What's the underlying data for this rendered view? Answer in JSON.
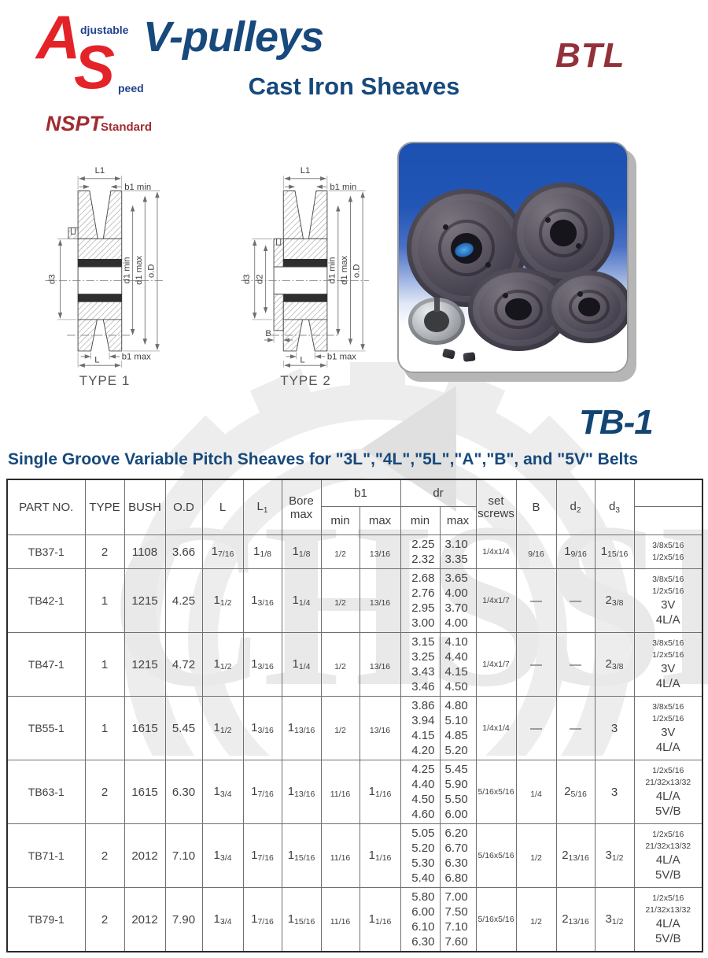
{
  "header": {
    "logo": {
      "a": "A",
      "adjustable": "djustable",
      "s": "S",
      "speed": "peed"
    },
    "title": "V-pulleys",
    "brand": "BTL",
    "subtitle": "Cast Iron Sheaves",
    "standard_name": "NSPT",
    "standard_suffix": "Standard"
  },
  "model_code": "TB-1",
  "watermark_text": "CHSSB",
  "section_title": "Single Groove Variable Pitch Sheaves for \"3L\",\"4L\",\"5L\",\"A\",\"B\", and \"5V\" Belts",
  "drawings": {
    "type1": {
      "caption": "TYPE 1",
      "labels": {
        "L1": "L1",
        "b1min": "b1 min",
        "d3": "d3",
        "d1min": "d1 min",
        "d1max": "d1 max",
        "oD": "o.D",
        "b1max": "b1 max",
        "L": "L"
      }
    },
    "type2": {
      "caption": "TYPE 2",
      "labels": {
        "L1": "L1",
        "b1min": "b1 min",
        "d3": "d3",
        "d2": "d2",
        "B": "B",
        "d1min": "d1 min",
        "d1max": "d1 max",
        "oD": "o.D",
        "b1max": "b1 max",
        "L": "L"
      }
    }
  },
  "table": {
    "headers": {
      "part": "PART NO.",
      "type": "TYPE",
      "bush": "BUSH",
      "od": "O.D",
      "l": "L",
      "l1_base": "L",
      "l1_sub": "1",
      "bore_line1": "Bore",
      "bore_line2": "max",
      "b1": "b1",
      "dr": "dr",
      "min": "min",
      "max": "max",
      "set_line1": "set",
      "set_line2": "screws",
      "b": "B",
      "d2_base": "d",
      "d2_sub": "2",
      "d3_base": "d",
      "d3_sub": "3"
    },
    "rows": [
      {
        "part": "TB37-1",
        "type": "2",
        "bush": "1108",
        "od": "3.66",
        "L": {
          "w": "1",
          "f": "7/16"
        },
        "L1": {
          "w": "1",
          "f": "1/8"
        },
        "bore": {
          "w": "1",
          "f": "1/8"
        },
        "b1min": {
          "f": "1/2"
        },
        "b1max": {
          "f": "13/16"
        },
        "drmin": [
          "2.25",
          "2.32"
        ],
        "drmax": [
          "3.10",
          "3.35"
        ],
        "set": "1/4x1/4",
        "B": {
          "f": "9/16"
        },
        "d2": {
          "w": "1",
          "f": "9/16"
        },
        "d3": {
          "w": "1",
          "f": "15/16"
        },
        "belts": [
          {
            "v": "3/8x5/16",
            "s": true
          },
          {
            "v": "1/2x5/16",
            "s": true
          }
        ]
      },
      {
        "part": "TB42-1",
        "type": "1",
        "bush": "1215",
        "od": "4.25",
        "L": {
          "w": "1",
          "f": "1/2"
        },
        "L1": {
          "w": "1",
          "f": "3/16"
        },
        "bore": {
          "w": "1",
          "f": "1/4"
        },
        "b1min": {
          "f": "1/2"
        },
        "b1max": {
          "f": "13/16"
        },
        "drmin": [
          "2.68",
          "2.76",
          "2.95",
          "3.00"
        ],
        "drmax": [
          "3.65",
          "4.00",
          "3.70",
          "4.00"
        ],
        "set": "1/4x1/7",
        "B": {
          "dash": true
        },
        "d2": {
          "dash": true
        },
        "d3": {
          "w": "2",
          "f": "3/8"
        },
        "belts": [
          {
            "v": "3/8x5/16",
            "s": true
          },
          {
            "v": "1/2x5/16",
            "s": true
          },
          {
            "v": "3V",
            "s": false
          },
          {
            "v": "4L/A",
            "s": false
          }
        ]
      },
      {
        "part": "TB47-1",
        "type": "1",
        "bush": "1215",
        "od": "4.72",
        "L": {
          "w": "1",
          "f": "1/2"
        },
        "L1": {
          "w": "1",
          "f": "3/16"
        },
        "bore": {
          "w": "1",
          "f": "1/4"
        },
        "b1min": {
          "f": "1/2"
        },
        "b1max": {
          "f": "13/16"
        },
        "drmin": [
          "3.15",
          "3.25",
          "3.43",
          "3.46"
        ],
        "drmax": [
          "4.10",
          "4.40",
          "4.15",
          "4.50"
        ],
        "set": "1/4x1/7",
        "B": {
          "dash": true
        },
        "d2": {
          "dash": true
        },
        "d3": {
          "w": "2",
          "f": "3/8"
        },
        "belts": [
          {
            "v": "3/8x5/16",
            "s": true
          },
          {
            "v": "1/2x5/16",
            "s": true
          },
          {
            "v": "3V",
            "s": false
          },
          {
            "v": "4L/A",
            "s": false
          }
        ]
      },
      {
        "part": "TB55-1",
        "type": "1",
        "bush": "1615",
        "od": "5.45",
        "L": {
          "w": "1",
          "f": "1/2"
        },
        "L1": {
          "w": "1",
          "f": "3/16"
        },
        "bore": {
          "w": "1",
          "f": "13/16"
        },
        "b1min": {
          "f": "1/2"
        },
        "b1max": {
          "f": "13/16"
        },
        "drmin": [
          "3.86",
          "3.94",
          "4.15",
          "4.20"
        ],
        "drmax": [
          "4.80",
          "5.10",
          "4.85",
          "5.20"
        ],
        "set": "1/4x1/4",
        "B": {
          "dash": true
        },
        "d2": {
          "dash": true
        },
        "d3": {
          "w": "3"
        },
        "belts": [
          {
            "v": "3/8x5/16",
            "s": true
          },
          {
            "v": "1/2x5/16",
            "s": true
          },
          {
            "v": "3V",
            "s": false
          },
          {
            "v": "4L/A",
            "s": false
          }
        ]
      },
      {
        "part": "TB63-1",
        "type": "2",
        "bush": "1615",
        "od": "6.30",
        "L": {
          "w": "1",
          "f": "3/4"
        },
        "L1": {
          "w": "1",
          "f": "7/16"
        },
        "bore": {
          "w": "1",
          "f": "13/16"
        },
        "b1min": {
          "f": "11/16"
        },
        "b1max": {
          "w": "1",
          "f": "1/16"
        },
        "drmin": [
          "4.25",
          "4.40",
          "4.50",
          "4.60"
        ],
        "drmax": [
          "5.45",
          "5.90",
          "5.50",
          "6.00"
        ],
        "set": "5/16x5/16",
        "B": {
          "f": "1/4"
        },
        "d2": {
          "w": "2",
          "f": "5/16"
        },
        "d3": {
          "w": "3"
        },
        "belts": [
          {
            "v": "1/2x5/16",
            "s": true
          },
          {
            "v": "21/32x13/32",
            "s": true
          },
          {
            "v": "4L/A",
            "s": false
          },
          {
            "v": "5V/B",
            "s": false
          }
        ]
      },
      {
        "part": "TB71-1",
        "type": "2",
        "bush": "2012",
        "od": "7.10",
        "L": {
          "w": "1",
          "f": "3/4"
        },
        "L1": {
          "w": "1",
          "f": "7/16"
        },
        "bore": {
          "w": "1",
          "f": "15/16"
        },
        "b1min": {
          "f": "11/16"
        },
        "b1max": {
          "w": "1",
          "f": "1/16"
        },
        "drmin": [
          "5.05",
          "5.20",
          "5.30",
          "5.40"
        ],
        "drmax": [
          "6.20",
          "6.70",
          "6.30",
          "6.80"
        ],
        "set": "5/16x5/16",
        "B": {
          "f": "1/2"
        },
        "d2": {
          "w": "2",
          "f": "13/16"
        },
        "d3": {
          "w": "3",
          "f": "1/2"
        },
        "belts": [
          {
            "v": "1/2x5/16",
            "s": true
          },
          {
            "v": "21/32x13/32",
            "s": true
          },
          {
            "v": "4L/A",
            "s": false
          },
          {
            "v": "5V/B",
            "s": false
          }
        ]
      },
      {
        "part": "TB79-1",
        "type": "2",
        "bush": "2012",
        "od": "7.90",
        "L": {
          "w": "1",
          "f": "3/4"
        },
        "L1": {
          "w": "1",
          "f": "7/16"
        },
        "bore": {
          "w": "1",
          "f": "15/16"
        },
        "b1min": {
          "f": "11/16"
        },
        "b1max": {
          "w": "1",
          "f": "1/16"
        },
        "drmin": [
          "5.80",
          "6.00",
          "6.10",
          "6.30"
        ],
        "drmax": [
          "7.00",
          "7.50",
          "7.10",
          "7.60"
        ],
        "set": "5/16x5/16",
        "B": {
          "f": "1/2"
        },
        "d2": {
          "w": "2",
          "f": "13/16"
        },
        "d3": {
          "w": "3",
          "f": "1/2"
        },
        "belts": [
          {
            "v": "1/2x5/16",
            "s": true
          },
          {
            "v": "21/32x13/32",
            "s": true
          },
          {
            "v": "4L/A",
            "s": false
          },
          {
            "v": "5V/B",
            "s": false
          }
        ]
      }
    ]
  },
  "colors": {
    "accent_blue": "#17497c",
    "logo_blue": "#21418c",
    "logo_red": "#e42329",
    "brand_maroon": "#93313b",
    "watermark_gray": "#e9e9e9"
  }
}
